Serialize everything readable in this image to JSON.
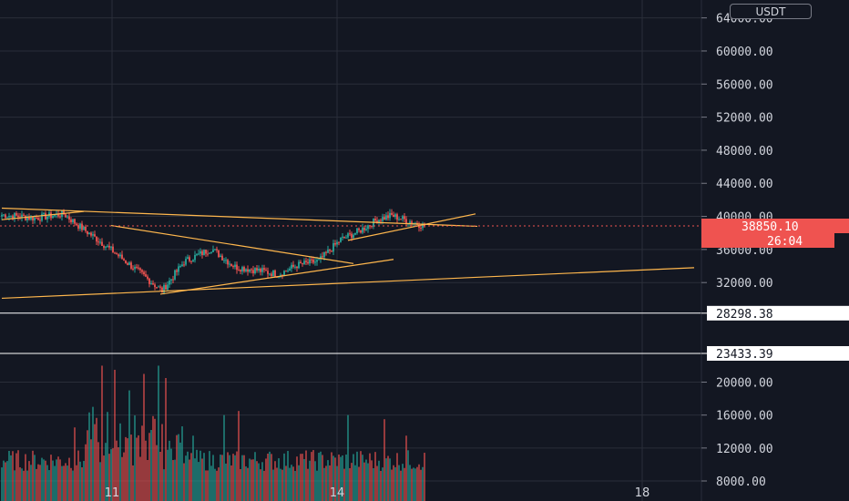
{
  "header": {
    "currency_label": "USDT"
  },
  "colors": {
    "background": "#131722",
    "grid": "#2a2e39",
    "up": "#26a69a",
    "down": "#ef5350",
    "trendline": "#ffb74d",
    "level_line": "#ffffff",
    "axis_text": "#d1d4dc"
  },
  "price_axis": {
    "ticks": [
      "64000.00",
      "60000.00",
      "56000.00",
      "52000.00",
      "48000.00",
      "44000.00",
      "40000.00",
      "36000.00",
      "32000.00"
    ],
    "tick_values": [
      64000,
      60000,
      56000,
      52000,
      48000,
      44000,
      40000,
      36000,
      32000
    ],
    "current_price": "38850.10",
    "countdown": "26:04"
  },
  "volume_axis": {
    "ticks": [
      "20000.00",
      "16000.00",
      "12000.00",
      "8000.00"
    ],
    "tick_values": [
      20000,
      16000,
      12000,
      8000
    ]
  },
  "time_axis": {
    "ticks": [
      "11",
      "14",
      "18"
    ]
  },
  "horizontal_levels": [
    {
      "label": "28298.38",
      "value": 28298.38
    },
    {
      "label": "23433.39",
      "value": 23433.39
    }
  ],
  "chart_data": {
    "type": "candlestick",
    "x_axis_ticks": [
      "11",
      "14",
      "18"
    ],
    "y_axis_range": [
      30000,
      66000
    ],
    "current_price": 38850.1,
    "horizontal_levels": [
      28298.38,
      23433.39
    ],
    "price_waypoints": [
      {
        "candle": 0,
        "close": 40200
      },
      {
        "candle": 18,
        "close": 39800
      },
      {
        "candle": 34,
        "close": 40300
      },
      {
        "candle": 42,
        "close": 38900
      },
      {
        "candle": 55,
        "close": 36800
      },
      {
        "candle": 70,
        "close": 34200
      },
      {
        "candle": 88,
        "close": 31000
      },
      {
        "candle": 100,
        "close": 34500
      },
      {
        "candle": 115,
        "close": 36100
      },
      {
        "candle": 128,
        "close": 33900
      },
      {
        "candle": 140,
        "close": 33500
      },
      {
        "candle": 152,
        "close": 33000
      },
      {
        "candle": 162,
        "close": 34100
      },
      {
        "candle": 174,
        "close": 34600
      },
      {
        "candle": 186,
        "close": 37200
      },
      {
        "candle": 196,
        "close": 38200
      },
      {
        "candle": 206,
        "close": 39600
      },
      {
        "candle": 214,
        "close": 40100
      },
      {
        "candle": 224,
        "close": 39400
      },
      {
        "candle": 232,
        "close": 38850
      }
    ],
    "volume_range": [
      7000,
      24000
    ],
    "volume_spikes": [
      {
        "candle": 50,
        "volume": 17000
      },
      {
        "candle": 55,
        "volume": 22000
      },
      {
        "candle": 62,
        "volume": 21500
      },
      {
        "candle": 70,
        "volume": 19000
      },
      {
        "candle": 78,
        "volume": 21000
      },
      {
        "candle": 86,
        "volume": 22000
      },
      {
        "candle": 90,
        "volume": 20500
      },
      {
        "candle": 40,
        "volume": 14500
      },
      {
        "candle": 105,
        "volume": 13500
      },
      {
        "candle": 122,
        "volume": 16000
      },
      {
        "candle": 130,
        "volume": 16500
      },
      {
        "candle": 190,
        "volume": 16000
      },
      {
        "candle": 210,
        "volume": 15500
      },
      {
        "candle": 222,
        "volume": 13500
      }
    ],
    "trendlines": [
      {
        "from": {
          "candle": 0,
          "price": 41000
        },
        "to": {
          "candle": 261,
          "price": 38800
        }
      },
      {
        "from": {
          "candle": 0,
          "price": 39600
        },
        "to": {
          "candle": 45,
          "price": 40600
        }
      },
      {
        "from": {
          "candle": 60,
          "price": 38900
        },
        "to": {
          "candle": 193,
          "price": 34300
        }
      },
      {
        "from": {
          "candle": 87,
          "price": 30600
        },
        "to": {
          "candle": 215,
          "price": 34800
        }
      },
      {
        "from": {
          "candle": 0,
          "price": 30100
        },
        "to": {
          "candle": 380,
          "price": 33800
        }
      },
      {
        "from": {
          "candle": 190,
          "price": 37100
        },
        "to": {
          "candle": 260,
          "price": 40300
        }
      }
    ]
  }
}
